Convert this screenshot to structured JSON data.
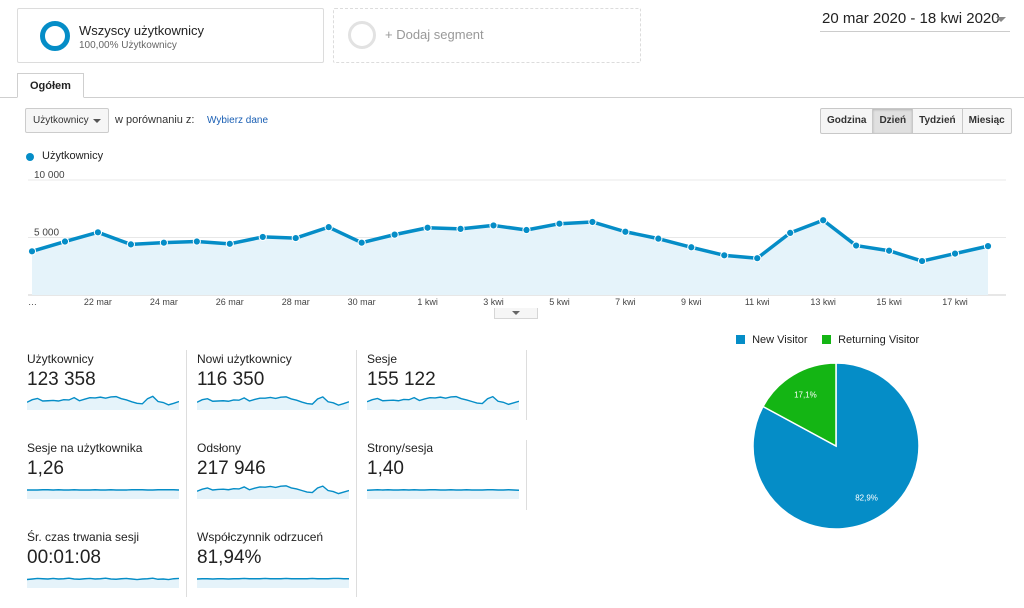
{
  "segments": [
    {
      "title": "Wszyscy użytkownicy",
      "subtitle": "100,00% Użytkownicy"
    },
    {
      "title": "+ Dodaj segment"
    }
  ],
  "date_range": "20 mar 2020 - 18 kwi 2020",
  "tab": "Ogółem",
  "metric_select": "Użytkownicy",
  "compare_label": "w porównaniu z:",
  "compare_link": "Wybierz dane",
  "granularity": [
    "Godzina",
    "Dzień",
    "Tydzień",
    "Miesiąc"
  ],
  "granularity_selected": "Dzień",
  "colors": {
    "accent": "#058dc7",
    "area": "#e5f3fa",
    "returning": "#14b514",
    "link": "#1a5fb4"
  },
  "chart_data": {
    "type": "area",
    "series": [
      {
        "name": "Użytkownicy",
        "values": [
          3800,
          4650,
          5450,
          4400,
          4550,
          4650,
          4450,
          5050,
          4950,
          5900,
          4550,
          5250,
          5850,
          5750,
          6050,
          5650,
          6200,
          6350,
          5500,
          4900,
          4150,
          3450,
          3200,
          5400,
          6500,
          4300,
          3850,
          2950,
          3600,
          4250
        ]
      }
    ],
    "x": [
      "",
      "",
      "22 mar",
      "",
      "24 mar",
      "",
      "26 mar",
      "",
      "28 mar",
      "",
      "30 mar",
      "",
      "1 kwi",
      "",
      "3 kwi",
      "",
      "5 kwi",
      "",
      "7 kwi",
      "",
      "9 kwi",
      "",
      "11 kwi",
      "",
      "13 kwi",
      "",
      "15 kwi",
      "",
      "17 kwi",
      ""
    ],
    "x_first_label": "…",
    "y_ticks": [
      {
        "value": 10000,
        "label": "10 000"
      },
      {
        "value": 5000,
        "label": "5 000"
      }
    ],
    "ylim": [
      0,
      10000
    ],
    "grid": true
  },
  "scorecards": [
    {
      "title": "Użytkownicy",
      "value": "123 358",
      "spark": [
        5,
        6,
        6.5,
        5.5,
        5.6,
        5.7,
        5.5,
        6,
        5.9,
        6.8,
        5.6,
        6.2,
        6.8,
        6.7,
        7,
        6.6,
        7.1,
        7.2,
        6.4,
        5.9,
        5.2,
        4.6,
        4.4,
        6.4,
        7.3,
        5.3,
        4.9,
        4,
        4.6,
        5.3
      ]
    },
    {
      "title": "Nowi użytkownicy",
      "value": "116 350",
      "spark": [
        5,
        6,
        6.4,
        5.4,
        5.5,
        5.6,
        5.4,
        5.9,
        5.8,
        6.7,
        5.5,
        6.1,
        6.6,
        6.6,
        6.9,
        6.5,
        7,
        7.1,
        6.3,
        5.8,
        5.1,
        4.5,
        4.3,
        6.3,
        7.1,
        5.2,
        4.8,
        3.9,
        4.5,
        5.2
      ]
    },
    {
      "title": "Sesje",
      "value": "155 122",
      "spark": [
        5.2,
        6,
        6.5,
        5.6,
        5.7,
        5.8,
        5.6,
        6.1,
        6,
        6.8,
        5.7,
        6.3,
        6.8,
        6.7,
        7,
        6.6,
        7.1,
        7.2,
        6.4,
        5.9,
        5.3,
        4.7,
        4.5,
        6.4,
        7.2,
        5.4,
        5,
        4.2,
        4.8,
        5.4
      ]
    },
    {
      "title": "Sesje na użytkownika",
      "value": "1,26",
      "spark": [
        5.5,
        5.5,
        5.5,
        5.6,
        5.6,
        5.5,
        5.6,
        5.5,
        5.5,
        5.6,
        5.5,
        5.5,
        5.5,
        5.6,
        5.5,
        5.5,
        5.6,
        5.5,
        5.5,
        5.5,
        5.6,
        5.6,
        5.6,
        5.5,
        5.5,
        5.6,
        5.6,
        5.6,
        5.6,
        5.5
      ]
    },
    {
      "title": "Odsłony",
      "value": "217 946",
      "spark": [
        5,
        5.8,
        6.3,
        5.5,
        5.7,
        5.8,
        5.6,
        6,
        5.9,
        6.7,
        5.6,
        6.2,
        6.7,
        6.6,
        6.9,
        6.5,
        7,
        7.1,
        6.3,
        5.9,
        5.3,
        4.7,
        4.5,
        6.3,
        7,
        5.3,
        4.9,
        4.1,
        4.7,
        5.3
      ]
    },
    {
      "title": "Strony/sesja",
      "value": "1,40",
      "spark": [
        5.4,
        5.5,
        5.6,
        5.5,
        5.6,
        5.5,
        5.5,
        5.6,
        5.5,
        5.6,
        5.5,
        5.5,
        5.6,
        5.6,
        5.5,
        5.5,
        5.6,
        5.5,
        5.5,
        5.6,
        5.5,
        5.5,
        5.5,
        5.6,
        5.6,
        5.5,
        5.5,
        5.6,
        5.5,
        5.4
      ]
    },
    {
      "title": "Śr. czas trwania sesji",
      "value": "00:01:08",
      "spark": [
        5.3,
        5.5,
        5.7,
        5.6,
        5.5,
        5.7,
        5.5,
        5.6,
        5.8,
        5.5,
        5.4,
        5.6,
        5.7,
        5.5,
        5.6,
        5.8,
        5.5,
        5.4,
        5.6,
        5.7,
        5.5,
        5.3,
        5.5,
        5.6,
        5.8,
        5.4,
        5.5,
        5.3,
        5.6,
        5.7
      ]
    },
    {
      "title": "Współczynnik odrzuceń",
      "value": "81,94%",
      "spark": [
        5.5,
        5.6,
        5.6,
        5.5,
        5.6,
        5.6,
        5.5,
        5.6,
        5.6,
        5.7,
        5.6,
        5.6,
        5.6,
        5.7,
        5.6,
        5.6,
        5.6,
        5.7,
        5.6,
        5.6,
        5.6,
        5.6,
        5.7,
        5.6,
        5.6,
        5.6,
        5.7,
        5.7,
        5.6,
        5.6
      ]
    }
  ],
  "pie": {
    "type": "pie",
    "slices": [
      {
        "name": "New Visitor",
        "value": 82.9,
        "label": "82,9%",
        "color": "#058dc7"
      },
      {
        "name": "Returning Visitor",
        "value": 17.1,
        "label": "17,1%",
        "color": "#14b514"
      }
    ]
  }
}
